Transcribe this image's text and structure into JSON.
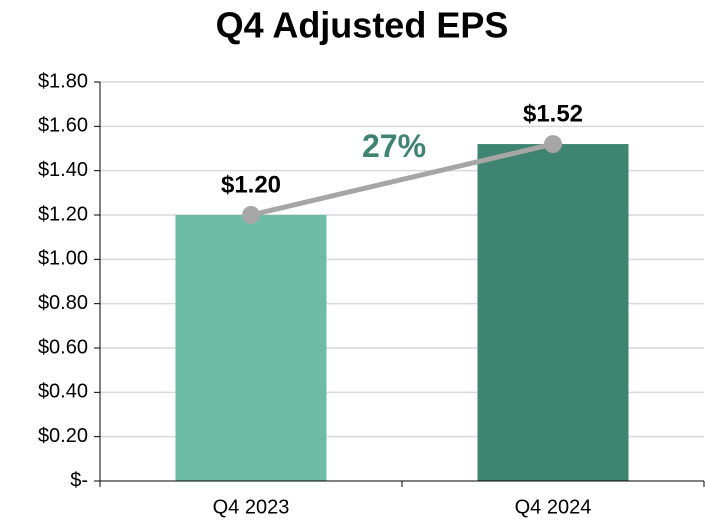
{
  "chart_data": {
    "type": "bar",
    "title": "Q4 Adjusted EPS",
    "categories": [
      "Q4 2023",
      "Q4 2024"
    ],
    "values": [
      1.2,
      1.52
    ],
    "value_labels": [
      "$1.20",
      "$1.52"
    ],
    "colors": [
      "#6dbda5",
      "#3e8470"
    ],
    "line_color": "#a6a6a6",
    "annotation": {
      "text": "27%",
      "color": "#3e8470"
    },
    "ylim": [
      0,
      1.8
    ],
    "yticks": [
      {
        "value": 0,
        "label": "$-"
      },
      {
        "value": 0.2,
        "label": "$0.20"
      },
      {
        "value": 0.4,
        "label": "$0.40"
      },
      {
        "value": 0.6,
        "label": "$0.60"
      },
      {
        "value": 0.8,
        "label": "$0.80"
      },
      {
        "value": 1.0,
        "label": "$1.00"
      },
      {
        "value": 1.2,
        "label": "$1.20"
      },
      {
        "value": 1.4,
        "label": "$1.40"
      },
      {
        "value": 1.6,
        "label": "$1.60"
      },
      {
        "value": 1.8,
        "label": "$1.80"
      }
    ],
    "grid": true
  }
}
